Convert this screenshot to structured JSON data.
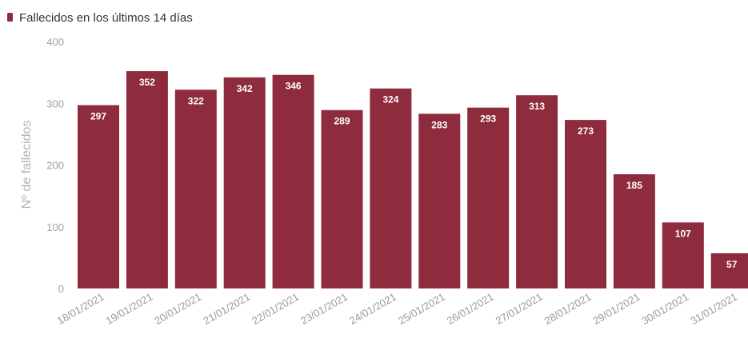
{
  "legend": {
    "label": "Fallecidos en los últimos 14 días"
  },
  "colors": {
    "bar": "#8e2b3c",
    "axis_text": "#a0a0a0",
    "legend_text": "#333333"
  },
  "chart_data": {
    "type": "bar",
    "title": "",
    "xlabel": "",
    "ylabel": "Nº de fallecidos",
    "ylim": [
      0,
      400
    ],
    "yticks": [
      0,
      100,
      200,
      300,
      400
    ],
    "grid": false,
    "legend_position": "top-left",
    "categories": [
      "18/01/2021",
      "19/01/2021",
      "20/01/2021",
      "21/01/2021",
      "22/01/2021",
      "23/01/2021",
      "24/01/2021",
      "25/01/2021",
      "26/01/2021",
      "27/01/2021",
      "28/01/2021",
      "29/01/2021",
      "30/01/2021",
      "31/01/2021"
    ],
    "series": [
      {
        "name": "Fallecidos en los últimos 14 días",
        "values": [
          297,
          352,
          322,
          342,
          346,
          289,
          324,
          283,
          293,
          313,
          273,
          185,
          107,
          57
        ]
      }
    ]
  }
}
